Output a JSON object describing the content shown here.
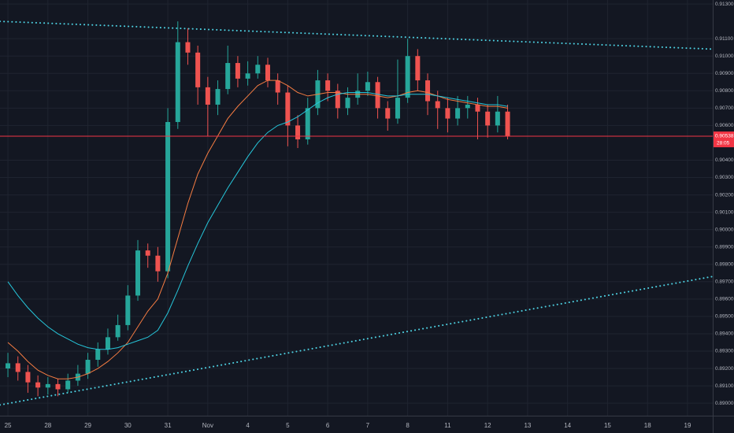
{
  "chart_data": {
    "type": "candlestick",
    "categories": [
      "25",
      null,
      null,
      null,
      "28",
      null,
      null,
      null,
      "29",
      null,
      null,
      null,
      "30",
      null,
      null,
      null,
      "31",
      null,
      null,
      null,
      "Nov",
      null,
      null,
      null,
      "4",
      null,
      null,
      null,
      "5",
      null,
      null,
      null,
      "6",
      null,
      null,
      null,
      "7",
      null,
      null,
      null,
      "8",
      null,
      null,
      null,
      "11",
      null,
      null,
      null,
      "12",
      null,
      null,
      null,
      "13",
      null,
      null,
      null,
      "14",
      null,
      null,
      null,
      "15",
      null,
      null,
      null,
      "18",
      null,
      null,
      null,
      "19",
      null,
      null,
      null
    ],
    "open": [
      0.892,
      0.8923,
      0.8918,
      0.8912,
      0.8909,
      0.8911,
      0.8908,
      0.8913,
      0.8917,
      0.8925,
      0.8931,
      0.8938,
      0.8945,
      0.8962,
      0.8988,
      0.8985,
      0.8976,
      0.9062,
      0.9108,
      0.9102,
      0.9082,
      0.9072,
      0.9081,
      0.9096,
      0.9087,
      0.909,
      0.9095,
      0.9086,
      0.9079,
      0.906,
      0.9052,
      0.907,
      0.9086,
      0.908,
      0.907,
      0.9076,
      0.908,
      0.9085,
      0.907,
      0.9064,
      0.9076,
      0.91,
      0.9086,
      0.9074,
      0.907,
      0.9064,
      0.907,
      0.9072,
      0.9068,
      0.906,
      0.9068,
      null,
      null,
      null,
      null,
      null,
      null,
      null,
      null,
      null,
      null,
      null,
      null,
      null,
      null,
      null,
      null,
      null,
      null,
      null,
      null,
      null
    ],
    "high": [
      0.8929,
      0.8927,
      0.8922,
      0.8916,
      0.8915,
      0.8914,
      0.8917,
      0.8922,
      0.8929,
      0.8935,
      0.8943,
      0.8951,
      0.8968,
      0.8994,
      0.8992,
      0.899,
      0.907,
      0.912,
      0.9116,
      0.9106,
      0.9088,
      0.9086,
      0.9106,
      0.91,
      0.9097,
      0.91,
      0.9099,
      0.909,
      0.9083,
      0.9066,
      0.9076,
      0.9092,
      0.909,
      0.9084,
      0.9082,
      0.909,
      0.9091,
      0.9088,
      0.9074,
      0.9098,
      0.911,
      0.9104,
      0.909,
      0.908,
      0.9076,
      0.9077,
      0.9077,
      0.9076,
      0.9072,
      0.9077,
      0.9072,
      null,
      null,
      null,
      null,
      null,
      null,
      null,
      null,
      null,
      null,
      null,
      null,
      null,
      null,
      null,
      null,
      null,
      null,
      null,
      null,
      null
    ],
    "low": [
      0.8915,
      0.8913,
      0.8906,
      0.8904,
      0.8905,
      0.8904,
      0.8906,
      0.891,
      0.8914,
      0.8921,
      0.8928,
      0.8936,
      0.8942,
      0.8959,
      0.8978,
      0.897,
      0.8972,
      0.9058,
      0.9095,
      0.9072,
      0.9054,
      0.9066,
      0.9078,
      0.9082,
      0.9083,
      0.9087,
      0.9082,
      0.9072,
      0.9048,
      0.9047,
      0.9049,
      0.9066,
      0.9074,
      0.9064,
      0.9066,
      0.9072,
      0.9077,
      0.9064,
      0.9057,
      0.9061,
      0.9073,
      0.908,
      0.9066,
      0.9058,
      0.9056,
      0.906,
      0.9064,
      0.9052,
      0.9053,
      0.9056,
      0.9052,
      null,
      null,
      null,
      null,
      null,
      null,
      null,
      null,
      null,
      null,
      null,
      null,
      null,
      null,
      null,
      null,
      null,
      null,
      null,
      null,
      null
    ],
    "close": [
      0.8923,
      0.8918,
      0.8912,
      0.8909,
      0.8911,
      0.8908,
      0.8913,
      0.8917,
      0.8925,
      0.8931,
      0.8938,
      0.8945,
      0.8962,
      0.8988,
      0.8985,
      0.8976,
      0.9062,
      0.9108,
      0.9102,
      0.9082,
      0.9072,
      0.9081,
      0.9096,
      0.9087,
      0.909,
      0.9095,
      0.9086,
      0.9079,
      0.906,
      0.9052,
      0.907,
      0.9086,
      0.908,
      0.907,
      0.9076,
      0.908,
      0.9085,
      0.907,
      0.9064,
      0.9076,
      0.91,
      0.9086,
      0.9074,
      0.907,
      0.9064,
      0.907,
      0.9072,
      0.9068,
      0.906,
      0.9068,
      0.90538,
      null,
      null,
      null,
      null,
      null,
      null,
      null,
      null,
      null,
      null,
      null,
      null,
      null,
      null,
      null,
      null,
      null,
      null,
      null,
      null,
      null
    ],
    "up_color": "#26a69a",
    "down_color": "#ef5350",
    "series": [
      {
        "color": "#f57c42",
        "values": [
          0.8935,
          0.893,
          0.8924,
          0.8919,
          0.8916,
          0.8914,
          0.8914,
          0.8915,
          0.8917,
          0.892,
          0.8924,
          0.8929,
          0.8935,
          0.8944,
          0.8953,
          0.896,
          0.8975,
          0.8995,
          0.9015,
          0.9032,
          0.9044,
          0.9054,
          0.9064,
          0.9071,
          0.9077,
          0.9083,
          0.9086,
          0.9086,
          0.9083,
          0.9079,
          0.9077,
          0.9078,
          0.9079,
          0.9079,
          0.9078,
          0.9078,
          0.9078,
          0.9077,
          0.9076,
          0.9077,
          0.9079,
          0.908,
          0.9079,
          0.9077,
          0.9075,
          0.9074,
          0.9073,
          0.9072,
          0.9071,
          0.9071,
          0.907,
          null,
          null,
          null,
          null,
          null,
          null,
          null,
          null,
          null,
          null,
          null,
          null,
          null,
          null,
          null,
          null,
          null,
          null,
          null,
          null,
          null
        ]
      },
      {
        "color": "#26c6da",
        "values": [
          0.897,
          0.8962,
          0.8955,
          0.8949,
          0.8944,
          0.894,
          0.8937,
          0.8934,
          0.8932,
          0.8931,
          0.8931,
          0.8932,
          0.8934,
          0.8936,
          0.8938,
          0.8942,
          0.8952,
          0.8965,
          0.8979,
          0.8992,
          0.9004,
          0.9014,
          0.9024,
          0.9033,
          0.9042,
          0.905,
          0.9056,
          0.906,
          0.9062,
          0.9065,
          0.9069,
          0.9073,
          0.9076,
          0.9078,
          0.9079,
          0.9079,
          0.9079,
          0.9078,
          0.9077,
          0.9077,
          0.9078,
          0.9078,
          0.9078,
          0.9077,
          0.9076,
          0.9075,
          0.9074,
          0.9073,
          0.9072,
          0.9072,
          0.9071,
          null,
          null,
          null,
          null,
          null,
          null,
          null,
          null,
          null,
          null,
          null,
          null,
          null,
          null,
          null,
          null,
          null,
          null,
          null,
          null,
          null
        ]
      }
    ],
    "trendlines": [
      {
        "color": "#4dd0e1",
        "values": [
          0.912,
          0.9104
        ]
      },
      {
        "color": "#4dd0e1",
        "values": [
          0.8899,
          0.8973
        ]
      }
    ],
    "last_price": 0.90538,
    "countdown": "28:05",
    "last_price_color": "#f23645",
    "ylim": [
      0.88928,
      0.91323
    ],
    "yticks": [
      {
        "value": 0.913,
        "label": "0.91300"
      },
      {
        "value": 0.911,
        "label": "0.91100"
      },
      {
        "value": 0.91,
        "label": "0.91000"
      },
      {
        "value": 0.909,
        "label": "0.90900"
      },
      {
        "value": 0.908,
        "label": "0.90800"
      },
      {
        "value": 0.907,
        "label": "0.90700"
      },
      {
        "value": 0.906,
        "label": "0.90600"
      },
      {
        "value": 0.904,
        "label": "0.90400"
      },
      {
        "value": 0.903,
        "label": "0.90300"
      },
      {
        "value": 0.902,
        "label": "0.90200"
      },
      {
        "value": 0.901,
        "label": "0.90100"
      },
      {
        "value": 0.9,
        "label": "0.90000"
      },
      {
        "value": 0.899,
        "label": "0.89900"
      },
      {
        "value": 0.898,
        "label": "0.89800"
      },
      {
        "value": 0.897,
        "label": "0.89700"
      },
      {
        "value": 0.896,
        "label": "0.89600"
      },
      {
        "value": 0.895,
        "label": "0.89500"
      },
      {
        "value": 0.894,
        "label": "0.89400"
      },
      {
        "value": 0.893,
        "label": "0.89300"
      },
      {
        "value": 0.892,
        "label": "0.89200"
      },
      {
        "value": 0.891,
        "label": "0.89100"
      },
      {
        "value": 0.89,
        "label": "0.89000"
      }
    ],
    "grid": true
  }
}
